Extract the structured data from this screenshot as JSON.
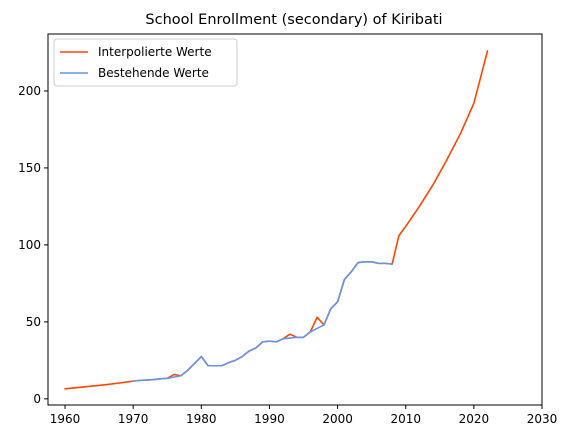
{
  "chart_data": {
    "type": "line",
    "title": "School Enrollment (secondary) of Kiribati",
    "xlabel": "",
    "ylabel": "",
    "xlim": [
      1957.5,
      2030
    ],
    "ylim": [
      -4,
      237
    ],
    "xticks": [
      1960,
      1970,
      1980,
      1990,
      2000,
      2010,
      2020,
      2030
    ],
    "yticks": [
      0,
      50,
      100,
      150,
      200
    ],
    "grid": false,
    "legend_position": "top-left",
    "series": [
      {
        "name": "Interpolierte Werte",
        "color": "#ff4500",
        "x": [
          1960,
          1962,
          1964,
          1966,
          1968,
          1970,
          1971,
          1972,
          1973,
          1974,
          1975,
          1976,
          1977,
          1978,
          1979,
          1980,
          1981,
          1982,
          1983,
          1984,
          1985,
          1986,
          1987,
          1988,
          1989,
          1990,
          1991,
          1992,
          1993,
          1994,
          1995,
          1996,
          1997,
          1998,
          1999,
          2000,
          2001,
          2002,
          2003,
          2004,
          2005,
          2006,
          2007,
          2008,
          2009,
          2010,
          2012,
          2014,
          2016,
          2018,
          2020,
          2022
        ],
        "y": [
          6.5,
          7.4,
          8.3,
          9.2,
          10.3,
          11.5,
          12,
          12.2,
          12.5,
          13,
          13.3,
          15.8,
          15,
          18.5,
          23,
          27.5,
          21.5,
          21.5,
          21.5,
          23.5,
          25,
          27.5,
          31,
          33,
          37,
          37.5,
          37,
          39,
          42,
          40,
          40,
          43.5,
          53,
          48,
          58.5,
          63,
          77.5,
          82.5,
          88.5,
          89,
          89,
          88,
          88,
          87.5,
          106,
          112,
          125,
          139,
          155,
          172,
          192,
          226
        ]
      },
      {
        "name": "Bestehende Werte",
        "color": "#6495ed",
        "x": [
          1970,
          1971,
          1972,
          1973,
          1974,
          1975,
          1977,
          1978,
          1979,
          1980,
          1981,
          1982,
          1983,
          1984,
          1985,
          1986,
          1987,
          1988,
          1989,
          1990,
          1991,
          1992,
          1994,
          1995,
          1996,
          1998,
          1999,
          2000,
          2001,
          2002,
          2003,
          2004,
          2005,
          2006,
          2007,
          2008
        ],
        "y": [
          11.5,
          12,
          12.2,
          12.5,
          13,
          13.3,
          15,
          18.5,
          23,
          27.5,
          21.5,
          21.5,
          21.5,
          23.5,
          25,
          27.5,
          31,
          33,
          37,
          37.5,
          37,
          39,
          40,
          40,
          43.5,
          48,
          58.5,
          63,
          77.5,
          82.5,
          88.5,
          89,
          89,
          88,
          88,
          87.5
        ]
      }
    ]
  }
}
